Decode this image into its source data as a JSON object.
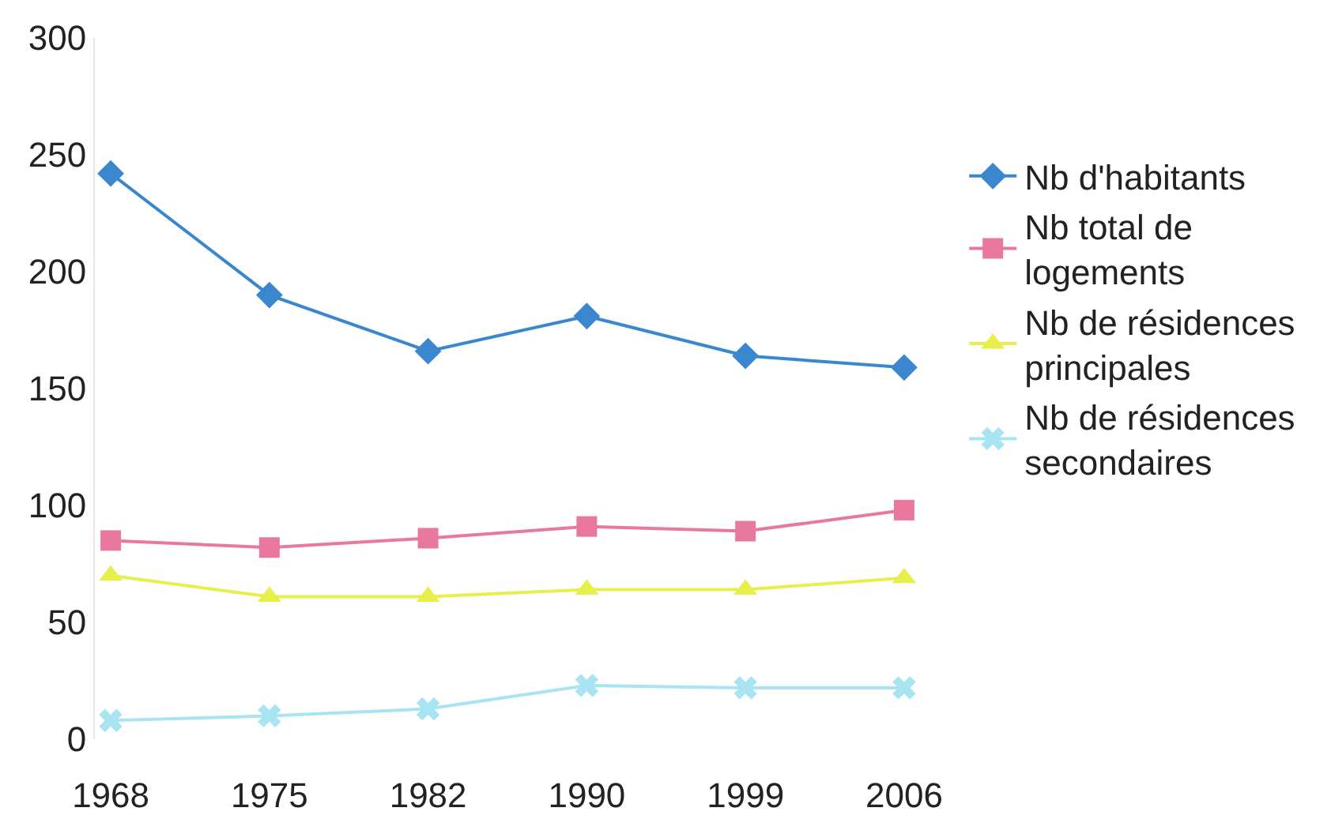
{
  "chart_data": {
    "type": "line",
    "categories": [
      "1968",
      "1975",
      "1982",
      "1990",
      "1999",
      "2006"
    ],
    "series": [
      {
        "name": "Nb d'habitants",
        "color": "#3a87cf",
        "marker": "diamond",
        "values": [
          242,
          190,
          166,
          181,
          164,
          159
        ]
      },
      {
        "name": "Nb total de logements",
        "color": "#e8789e",
        "marker": "square",
        "values": [
          85,
          82,
          86,
          91,
          89,
          98
        ]
      },
      {
        "name": "Nb de résidences principales",
        "color": "#e8ef4a",
        "marker": "triangle",
        "values": [
          70,
          61,
          61,
          64,
          64,
          69
        ]
      },
      {
        "name": "Nb de résidences secondaires",
        "color": "#a8e4f2",
        "marker": "cross",
        "values": [
          8,
          10,
          13,
          23,
          22,
          22
        ]
      }
    ],
    "ylim": [
      0,
      300
    ],
    "yticks": [
      0,
      50,
      100,
      150,
      200,
      250,
      300
    ],
    "legend": "right",
    "line_style": "solid"
  }
}
